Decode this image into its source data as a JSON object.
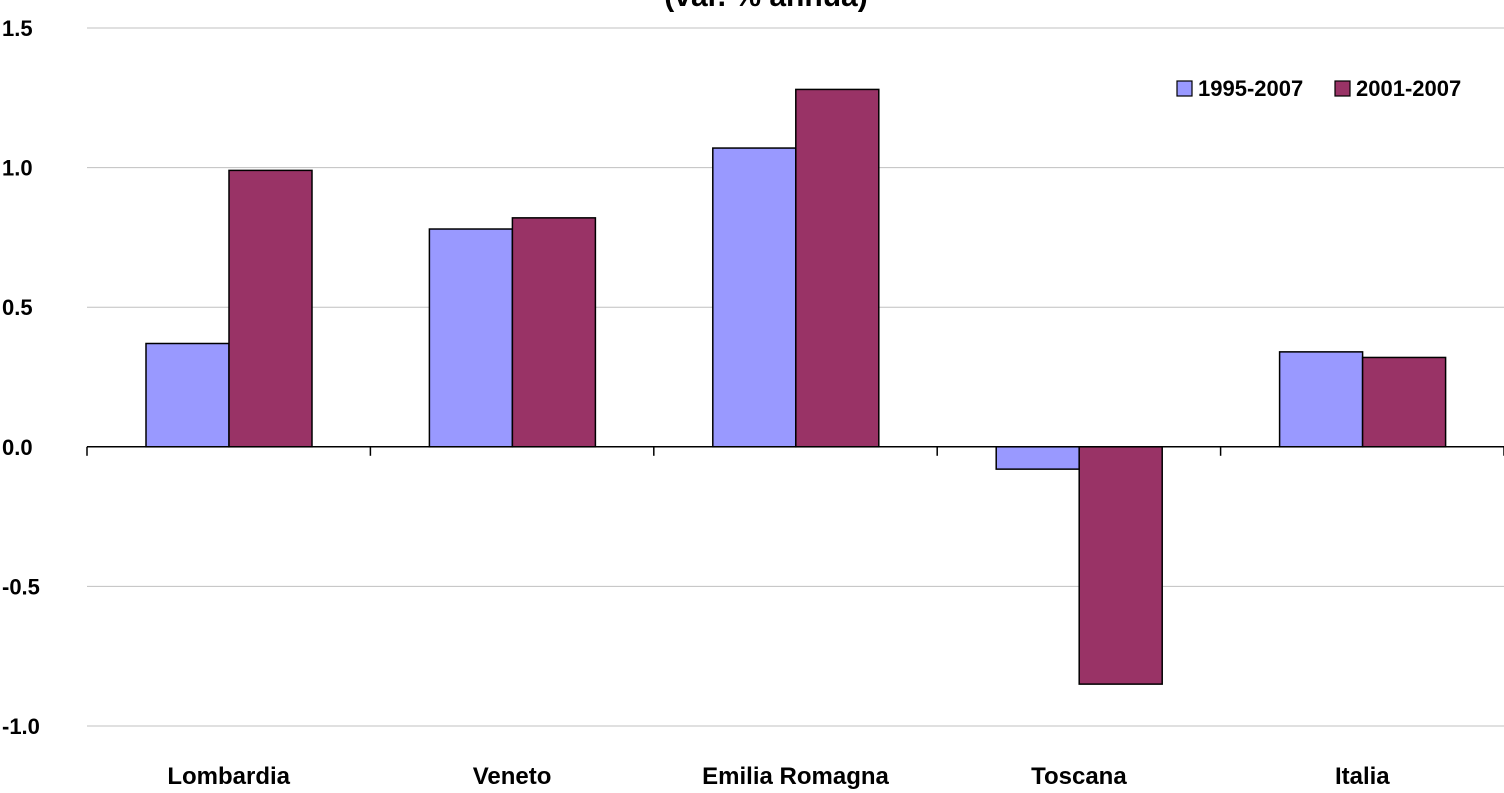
{
  "chart_data": {
    "type": "bar",
    "title": "(var. % annua)",
    "xlabel": "",
    "ylabel": "",
    "categories": [
      "Lombardia",
      "Veneto",
      "Emilia Romagna",
      "Toscana",
      "Italia"
    ],
    "series": [
      {
        "name": "1995-2007",
        "color": "#9999ff",
        "values": [
          0.37,
          0.78,
          1.07,
          -0.08,
          0.34
        ]
      },
      {
        "name": "2001-2007",
        "color": "#993366",
        "values": [
          0.99,
          0.82,
          1.28,
          -0.85,
          0.32
        ]
      }
    ],
    "ylim": [
      -1.0,
      1.5
    ],
    "yticks": [
      "1.5",
      "1.0",
      "0.5",
      "0.0",
      "-0.5",
      "-1.0"
    ],
    "grid": true,
    "legend_position": "top-right"
  }
}
